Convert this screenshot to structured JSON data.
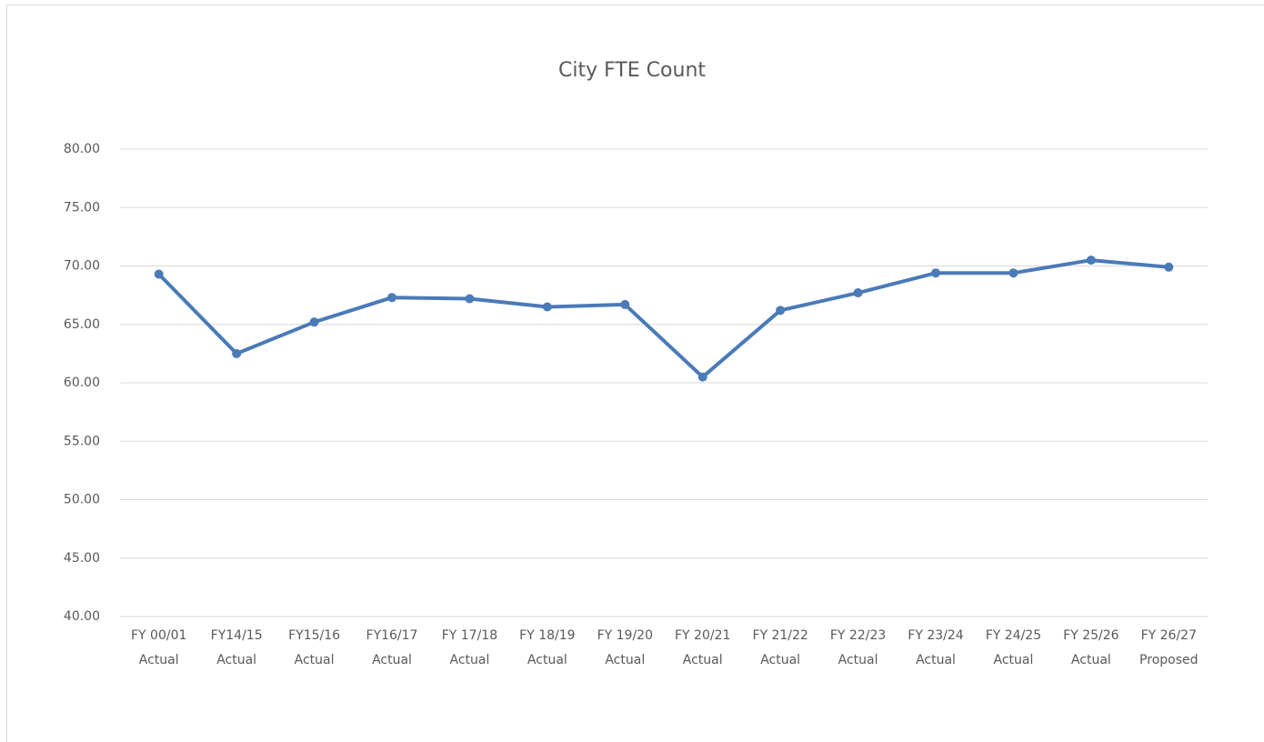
{
  "chart_data": {
    "type": "line",
    "title": "City FTE Count",
    "categories": [
      [
        "FY 00/01",
        "Actual"
      ],
      [
        "FY14/15",
        "Actual"
      ],
      [
        "FY15/16",
        "Actual"
      ],
      [
        "FY16/17",
        "Actual"
      ],
      [
        "FY 17/18",
        "Actual"
      ],
      [
        "FY 18/19",
        "Actual"
      ],
      [
        "FY 19/20",
        "Actual"
      ],
      [
        "FY 20/21",
        "Actual"
      ],
      [
        "FY 21/22",
        "Actual"
      ],
      [
        "FY 22/23",
        "Actual"
      ],
      [
        "FY 23/24",
        "Actual"
      ],
      [
        "FY 24/25",
        "Actual"
      ],
      [
        "FY 25/26",
        "Actual"
      ],
      [
        "FY 26/27",
        "Proposed"
      ]
    ],
    "series": [
      {
        "name": "City FTE Count",
        "color": "#4a7ab8",
        "values": [
          69.3,
          62.5,
          65.2,
          67.3,
          67.2,
          66.5,
          66.7,
          60.5,
          66.2,
          67.7,
          69.4,
          69.4,
          70.5,
          69.9
        ]
      }
    ],
    "ylim": [
      40,
      80
    ],
    "yticks": [
      {
        "value": 40,
        "label": "40.00"
      },
      {
        "value": 45,
        "label": "45.00"
      },
      {
        "value": 50,
        "label": "50.00"
      },
      {
        "value": 55,
        "label": "55.00"
      },
      {
        "value": 60,
        "label": "60.00"
      },
      {
        "value": 65,
        "label": "65.00"
      },
      {
        "value": 70,
        "label": "70.00"
      },
      {
        "value": 75,
        "label": "75.00"
      },
      {
        "value": 80,
        "label": "80.00"
      }
    ],
    "grid": true
  }
}
